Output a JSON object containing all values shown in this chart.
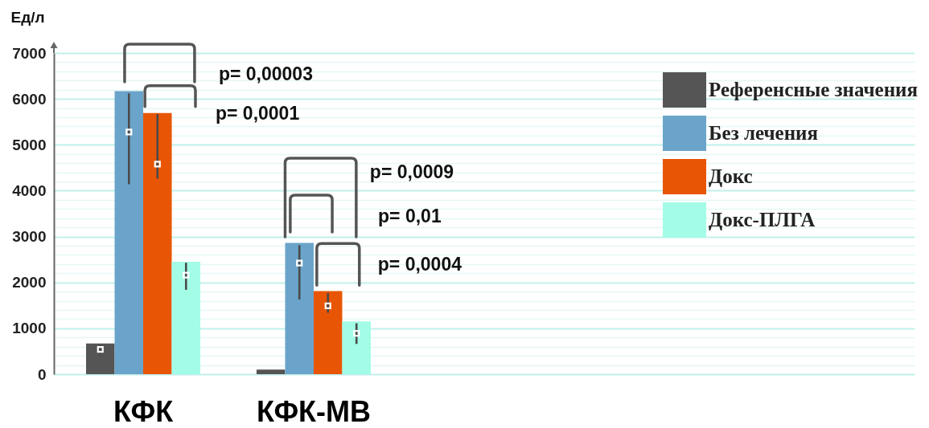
{
  "chart_data": {
    "type": "bar",
    "ylabel": "Ед/л",
    "categories": [
      "КФК",
      "КФК-МВ"
    ],
    "series": [
      {
        "name": "Референсные значения",
        "color": "#555555",
        "values": [
          670,
          100
        ]
      },
      {
        "name": "Без лечения",
        "color": "#6aa4ca",
        "values": [
          6170,
          2860
        ]
      },
      {
        "name": "Докс",
        "color": "#e85504",
        "values": [
          5690,
          1810
        ]
      },
      {
        "name": "Докс-ПЛГА",
        "color": "#a2fce6",
        "values": [
          2450,
          1150
        ]
      },
      {
        "type": "scatter",
        "color": "#ffffff",
        "x": [
          "КФК",
          "КФК-МВ"
        ],
        "values": [
          540,
          null
        ],
        "errors": [
          [
            420,
            640
          ],
          null
        ]
      },
      {
        "type": "scatter",
        "color": "#ffffff",
        "x": [
          "КФК",
          "КФК-МВ"
        ],
        "values": [
          5280,
          2420
        ],
        "errors": [
          [
            4140,
            6120
          ],
          [
            1630,
            2810
          ]
        ]
      },
      {
        "type": "scatter",
        "color": "#ffffff",
        "x": [
          "КФК",
          "КФК-МВ"
        ],
        "values": [
          4580,
          1490
        ],
        "errors": [
          [
            4260,
            5670
          ],
          [
            1340,
            1770
          ]
        ]
      },
      {
        "type": "scatter",
        "color": "#ffffff",
        "x": [
          "КФК",
          "КФК-МВ"
        ],
        "values": [
          2160,
          890
        ],
        "errors": [
          [
            1840,
            2430
          ],
          [
            660,
            1110
          ]
        ]
      }
    ],
    "ylim": [
      0,
      7000
    ],
    "yticks": [
      0,
      {
        "value": 200,
        "label": null
      },
      {
        "value": 400,
        "label": null
      },
      {
        "value": 600,
        "label": null
      },
      {
        "value": 800,
        "label": null
      },
      1000,
      {
        "value": 1200,
        "label": null
      },
      {
        "value": 1400,
        "label": null
      },
      {
        "value": 1600,
        "label": null
      },
      {
        "value": 1800,
        "label": null
      },
      2000,
      {
        "value": 2200,
        "label": null
      },
      {
        "value": 2400,
        "label": null
      },
      {
        "value": 2600,
        "label": null
      },
      {
        "value": 2800,
        "label": null
      },
      3000,
      {
        "value": 3200,
        "label": null
      },
      {
        "value": 3400,
        "label": null
      },
      {
        "value": 3600,
        "label": null
      },
      {
        "value": 3800,
        "label": null
      },
      4000,
      {
        "value": 4200,
        "label": null
      },
      {
        "value": 4400,
        "label": null
      },
      {
        "value": 4600,
        "label": null
      },
      {
        "value": 4800,
        "label": null
      },
      5000,
      {
        "value": 5200,
        "label": null
      },
      {
        "value": 5400,
        "label": null
      },
      {
        "value": 5600,
        "label": null
      },
      {
        "value": 5800,
        "label": null
      },
      6000,
      {
        "value": 6200,
        "label": null
      },
      {
        "value": 6400,
        "label": null
      },
      {
        "value": 6600,
        "label": null
      },
      {
        "value": 6800,
        "label": null
      },
      7000
    ],
    "grid": "y",
    "legend": "top right",
    "marker": "square",
    "annotations": [
      "p= 0,00003",
      {
        "text": "p= 0,0001",
        "x": "КФК",
        "y": 5830
      },
      "p= 0,0009",
      "p= 0,01",
      {
        "text": "p= 0,0004",
        "x": "КФК-МВ",
        "y": 1940
      }
    ]
  }
}
